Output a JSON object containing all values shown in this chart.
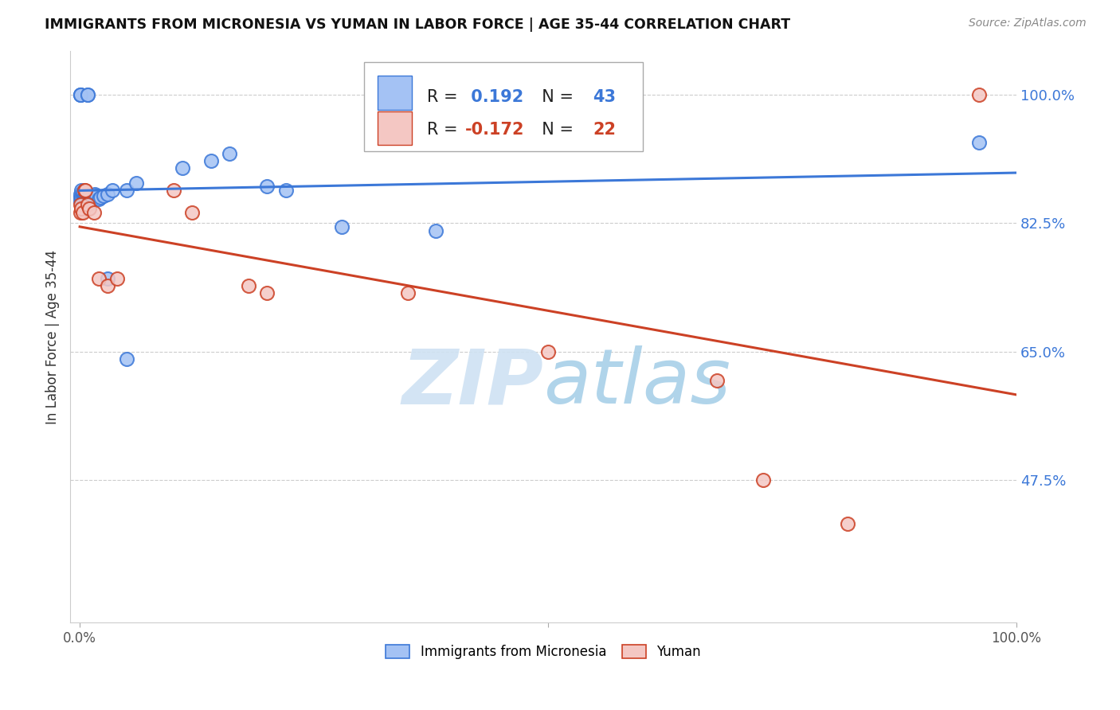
{
  "title": "IMMIGRANTS FROM MICRONESIA VS YUMAN IN LABOR FORCE | AGE 35-44 CORRELATION CHART",
  "source_text": "Source: ZipAtlas.com",
  "ylabel": "In Labor Force | Age 35-44",
  "xlim": [
    -0.01,
    1.0
  ],
  "ylim": [
    0.28,
    1.06
  ],
  "yticks": [
    0.475,
    0.65,
    0.825,
    1.0
  ],
  "ytick_labels": [
    "47.5%",
    "65.0%",
    "82.5%",
    "100.0%"
  ],
  "xtick_positions": [
    0.0,
    0.5,
    1.0
  ],
  "xtick_labels": [
    "0.0%",
    "",
    "100.0%"
  ],
  "blue_R": 0.192,
  "blue_N": 43,
  "pink_R": -0.172,
  "pink_N": 22,
  "blue_fill": "#a4c2f4",
  "pink_fill": "#f4c7c3",
  "blue_edge": "#3c78d8",
  "pink_edge": "#cc4125",
  "line_blue": "#3c78d8",
  "line_pink": "#cc4125",
  "watermark_color": "#cfe2f3",
  "legend_labels": [
    "Immigrants from Micronesia",
    "Yuman"
  ],
  "blue_points_x": [
    0.001,
    0.001,
    0.001,
    0.002,
    0.002,
    0.002,
    0.003,
    0.003,
    0.003,
    0.004,
    0.004,
    0.005,
    0.005,
    0.006,
    0.006,
    0.007,
    0.007,
    0.008,
    0.008,
    0.009,
    0.01,
    0.01,
    0.011,
    0.012,
    0.013,
    0.015,
    0.016,
    0.018,
    0.02,
    0.022,
    0.025,
    0.03,
    0.035,
    0.05,
    0.06,
    0.11,
    0.14,
    0.16,
    0.2,
    0.22,
    0.28,
    0.38,
    0.96
  ],
  "blue_points_y": [
    0.855,
    0.86,
    0.865,
    0.855,
    0.86,
    0.87,
    0.855,
    0.862,
    0.868,
    0.85,
    0.858,
    0.855,
    0.862,
    0.852,
    0.862,
    0.858,
    0.862,
    0.852,
    0.86,
    0.855,
    0.852,
    0.862,
    0.855,
    0.858,
    0.862,
    0.86,
    0.865,
    0.862,
    0.858,
    0.86,
    0.862,
    0.865,
    0.87,
    0.87,
    0.88,
    0.9,
    0.91,
    0.92,
    0.875,
    0.87,
    0.82,
    0.815,
    0.935
  ],
  "blue_extra_x": [
    0.001,
    0.001,
    0.001,
    0.008,
    0.008,
    0.03,
    0.05
  ],
  "blue_extra_y": [
    1.0,
    1.0,
    1.0,
    1.0,
    1.0,
    0.75,
    0.64
  ],
  "pink_points_x": [
    0.001,
    0.001,
    0.002,
    0.003,
    0.005,
    0.006,
    0.008,
    0.01,
    0.015,
    0.02,
    0.03,
    0.04,
    0.1,
    0.12,
    0.18,
    0.2,
    0.35,
    0.5,
    0.68,
    0.73,
    0.82,
    0.96
  ],
  "pink_points_y": [
    0.84,
    0.85,
    0.845,
    0.84,
    0.87,
    0.87,
    0.85,
    0.845,
    0.84,
    0.75,
    0.74,
    0.75,
    0.87,
    0.84,
    0.74,
    0.73,
    0.73,
    0.65,
    0.61,
    0.475,
    0.415,
    1.0
  ]
}
